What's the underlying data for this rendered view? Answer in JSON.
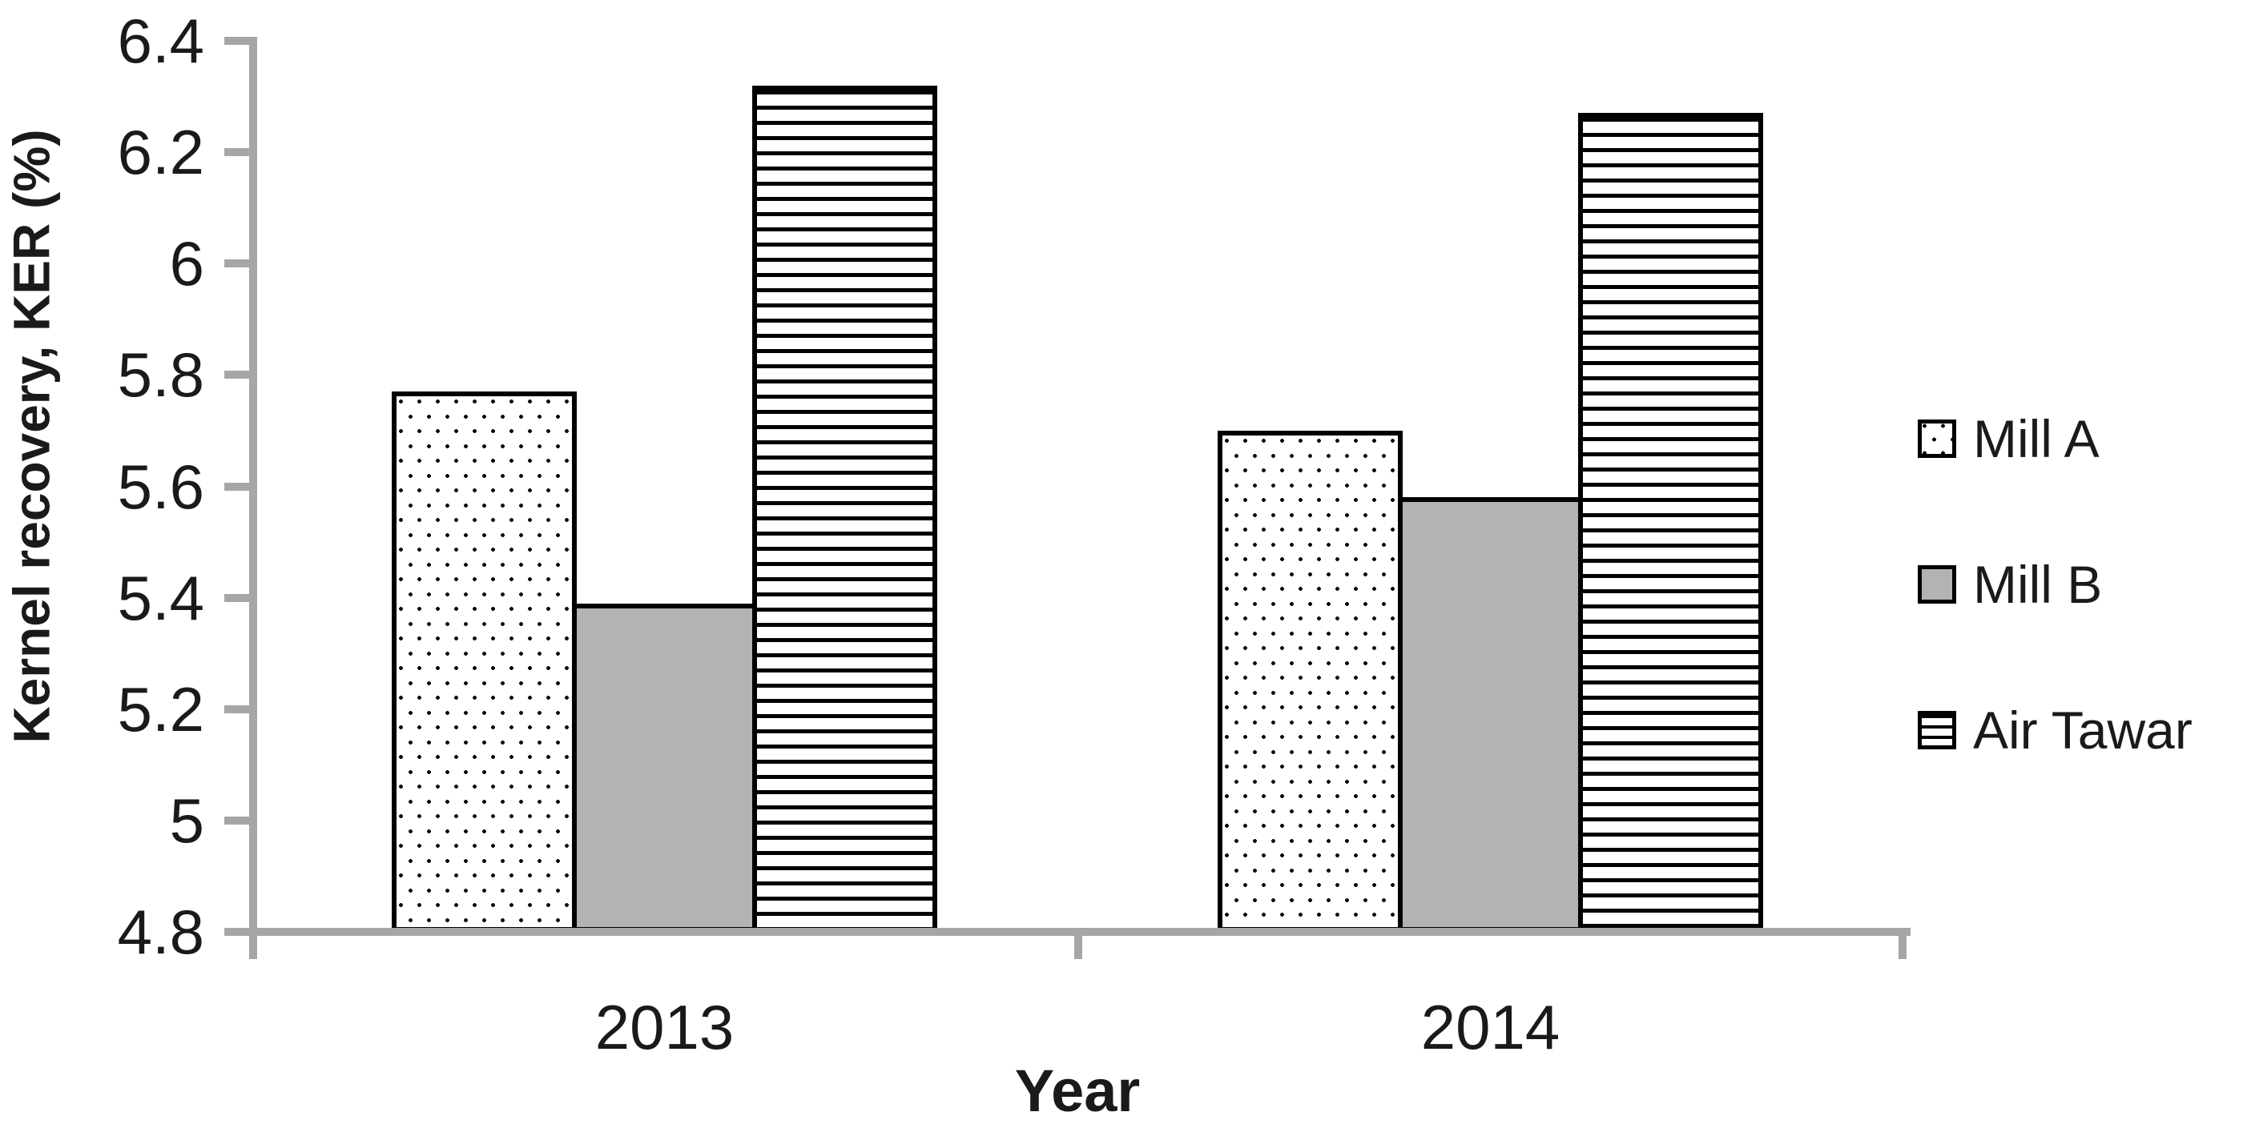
{
  "chart_data": {
    "type": "bar",
    "title": "",
    "categories": [
      "2013",
      "2014"
    ],
    "series": [
      {
        "name": "Mill A",
        "pattern": "dots",
        "values": [
          5.77,
          5.7
        ]
      },
      {
        "name": "Mill B",
        "pattern": "solid-gray",
        "values": [
          5.39,
          5.58
        ]
      },
      {
        "name": "Air Tawar",
        "pattern": "hlines",
        "values": [
          6.32,
          6.27
        ]
      }
    ],
    "xlabel": "Year",
    "ylabel": "Kernel recovery, KER (%)",
    "ylim": [
      4.8,
      6.4
    ],
    "ytick_step": 0.2,
    "ytick_labels": [
      "6.4",
      "6.2",
      "6",
      "5.8",
      "5.6",
      "5.4",
      "5.2",
      "5",
      "4.8"
    ],
    "grid": false,
    "legend_position": "right"
  },
  "colors": {
    "axis": "#a6a6a6",
    "bar_border": "#000000",
    "bar_gray_fill": "#b3b3b3",
    "text": "#1a1a1a",
    "background": "#ffffff"
  }
}
